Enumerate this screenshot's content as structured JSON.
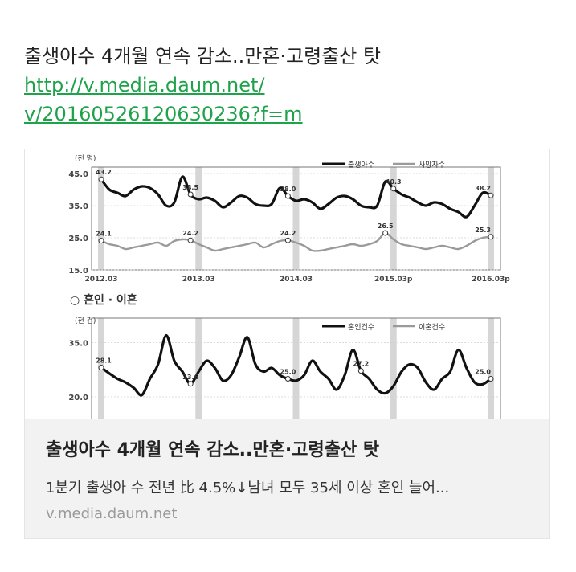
{
  "message": {
    "text": "출생아수 4개월 연속 감소..만혼·고령출산 탓",
    "link_line1": "http://v.media.daum.net/",
    "link_line2": "v/20160526120630236?f=m"
  },
  "card": {
    "title": "출생아수 4개월 연속 감소..만혼·고령출산 탓",
    "description": "1분기 출생아 수 전년 比 4.5%↓남녀 모두 35세 이상 혼인 늘어...",
    "domain": "v.media.daum.net"
  },
  "chart_data": [
    {
      "type": "line",
      "unit": "(천 명)",
      "x_tick_labels": [
        "2012.03",
        "2013.03",
        "2014.03",
        "2015.03p",
        "2016.03p"
      ],
      "y_tick_labels": [
        "45.0",
        "35.0",
        "25.0",
        "15.0"
      ],
      "ylim": [
        15,
        45
      ],
      "legend_position": "top-right",
      "series": [
        {
          "name": "출생아수",
          "color": "#111111",
          "values": [
            43.2,
            40.0,
            39.0,
            38.0,
            40.0,
            41.0,
            40.5,
            38.5,
            35.0,
            36.0,
            44.0,
            38.5,
            37.0,
            37.5,
            36.5,
            34.5,
            36.0,
            38.0,
            37.5,
            35.5,
            35.0,
            35.5,
            40.5,
            38.0,
            36.5,
            37.0,
            36.0,
            34.0,
            35.5,
            37.5,
            38.0,
            37.0,
            35.0,
            34.5,
            35.0,
            42.5,
            40.3,
            38.5,
            37.5,
            36.0,
            35.0,
            36.0,
            35.5,
            34.0,
            33.0,
            31.5,
            35.0,
            39.0,
            38.2
          ],
          "annotations": [
            {
              "i": 0,
              "label": "43.2"
            },
            {
              "i": 11,
              "label": "38.5"
            },
            {
              "i": 23,
              "label": "38.0"
            },
            {
              "i": 36,
              "label": "40.3"
            },
            {
              "i": 48,
              "label": "38.2"
            }
          ]
        },
        {
          "name": "사망자수",
          "color": "#9a9a9a",
          "values": [
            24.1,
            23.0,
            22.5,
            21.5,
            22.0,
            22.5,
            23.0,
            23.5,
            22.5,
            24.0,
            24.5,
            24.2,
            23.0,
            22.0,
            21.0,
            21.5,
            22.0,
            22.5,
            23.0,
            23.5,
            22.0,
            23.0,
            24.0,
            24.2,
            23.5,
            22.5,
            21.0,
            21.0,
            21.5,
            22.0,
            22.5,
            23.0,
            22.5,
            23.0,
            24.0,
            26.5,
            24.5,
            23.0,
            22.5,
            22.0,
            21.5,
            22.0,
            22.5,
            22.0,
            21.5,
            22.5,
            24.0,
            25.0,
            25.3
          ],
          "annotations": [
            {
              "i": 0,
              "label": "24.1"
            },
            {
              "i": 11,
              "label": "24.2"
            },
            {
              "i": 23,
              "label": "24.2"
            },
            {
              "i": 35,
              "label": "26.5"
            },
            {
              "i": 48,
              "label": "25.3"
            }
          ]
        }
      ]
    },
    {
      "type": "line",
      "section_label": "○ 혼인 · 이혼",
      "unit": "(천 건)",
      "y_tick_labels": [
        "35.0",
        "20.0"
      ],
      "ylim": [
        14,
        40
      ],
      "legend_position": "top-right",
      "series": [
        {
          "name": "혼인건수",
          "color": "#111111",
          "values": [
            28.1,
            26.5,
            25.0,
            24.0,
            22.5,
            20.5,
            25.0,
            29.0,
            37.0,
            30.0,
            27.0,
            23.6,
            27.0,
            30.0,
            28.0,
            24.5,
            26.0,
            31.0,
            36.5,
            29.0,
            27.0,
            28.0,
            26.0,
            25.0,
            24.5,
            26.0,
            30.0,
            27.0,
            25.0,
            22.0,
            26.0,
            33.0,
            27.2,
            25.0,
            22.0,
            21.0,
            23.0,
            27.0,
            29.0,
            28.0,
            24.0,
            22.0,
            25.0,
            27.0,
            33.0,
            28.0,
            24.0,
            23.5,
            25.0
          ]
        },
        {
          "name": "이혼건수",
          "color": "#9a9a9a",
          "values": []
        }
      ],
      "annotations": [
        {
          "i": 0,
          "label": "28.1"
        },
        {
          "i": 11,
          "label": "23.6"
        },
        {
          "i": 23,
          "label": "25.0"
        },
        {
          "i": 32,
          "label": "27.2"
        },
        {
          "i": 48,
          "label": "25.0"
        }
      ]
    }
  ]
}
